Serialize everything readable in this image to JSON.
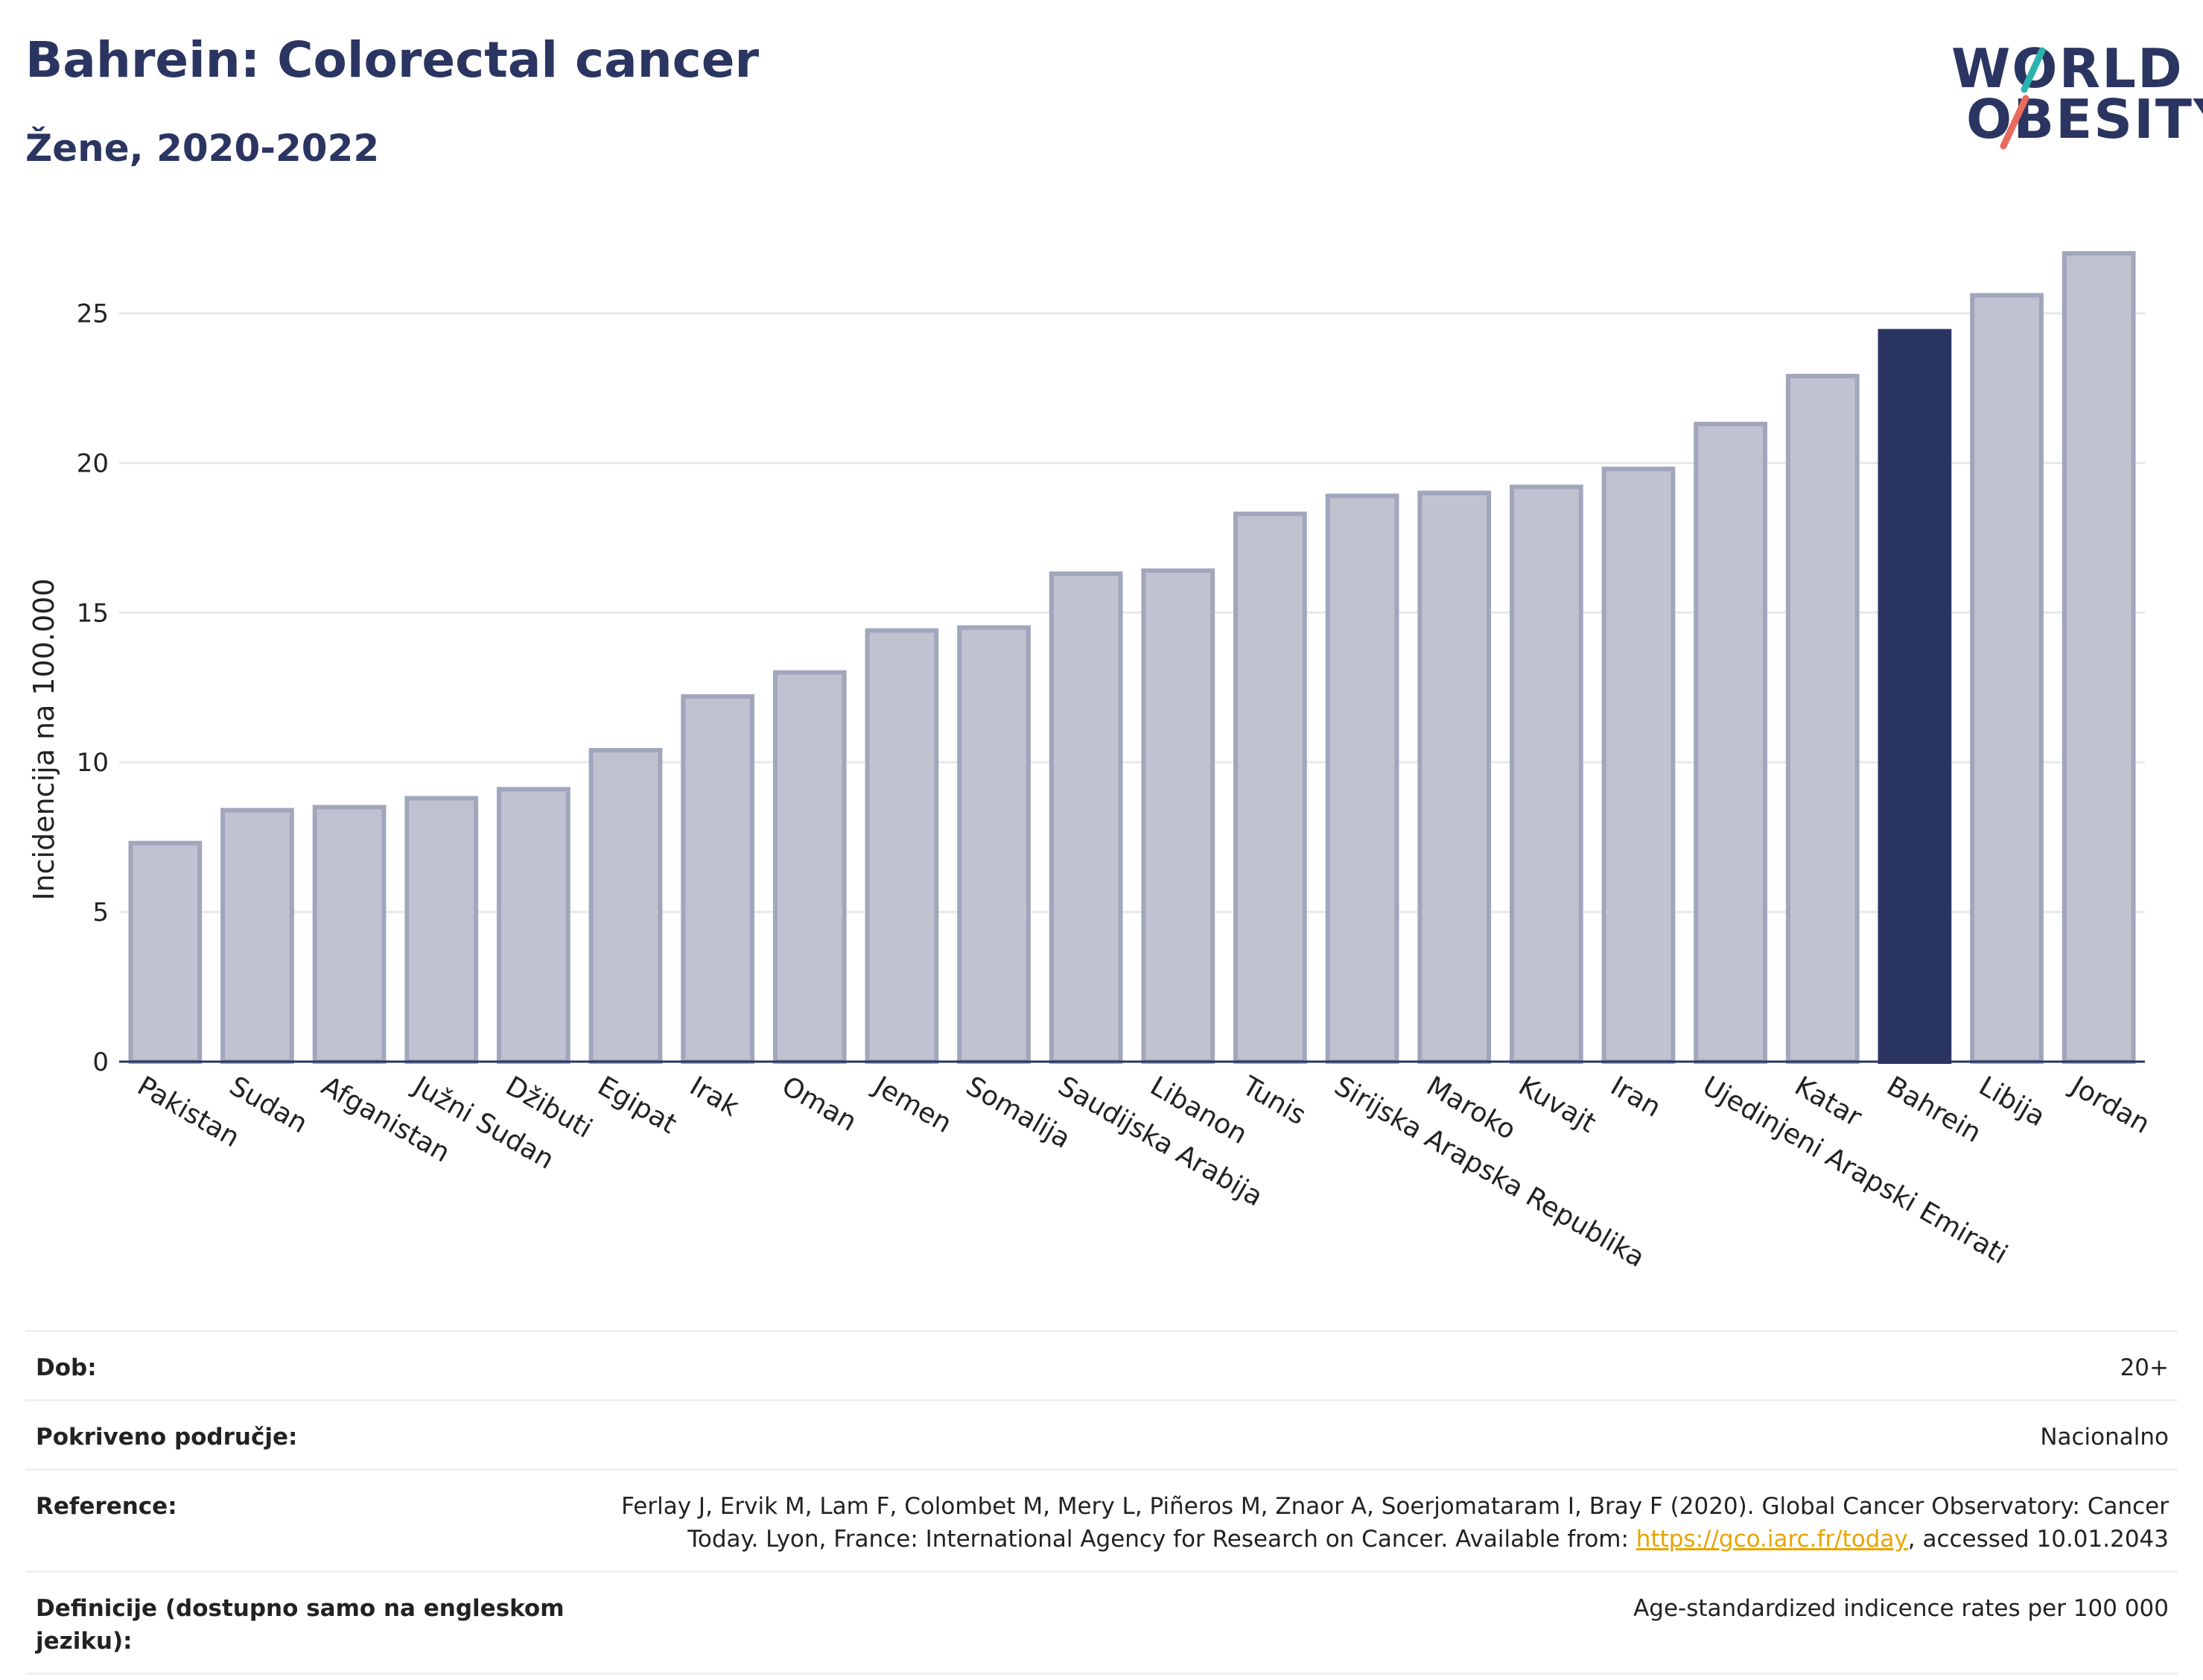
{
  "header": {
    "title": "Bahrein: Colorectal cancer",
    "subtitle": "Žene, 2020-2022"
  },
  "logo": {
    "line1": "WORLD",
    "line2": "OBESITY",
    "colors": {
      "text": "#2b3561",
      "slash_teal": "#2bb3b0",
      "slash_coral": "#e96b5e"
    }
  },
  "colors": {
    "bar": "#bfc2cf",
    "bar_border": "#a1a6bc",
    "highlight": "#2b3561",
    "grid": "#e6e8ee",
    "axis": "#2b3561"
  },
  "chart_data": {
    "type": "bar",
    "title": "",
    "xlabel": "",
    "ylabel": "Incidencija na 100.000",
    "ylim": [
      0,
      27.5
    ],
    "yticks": [
      0,
      5,
      10,
      15,
      20,
      25
    ],
    "grid": true,
    "highlight_category": "Bahrein",
    "categories": [
      "Pakistan",
      "Sudan",
      "Afganistan",
      "Južni Sudan",
      "Džibuti",
      "Egipat",
      "Irak",
      "Oman",
      "Jemen",
      "Somalija",
      "Saudijska Arabija",
      "Libanon",
      "Tunis",
      "Sirijska Arapska Republika",
      "Maroko",
      "Kuvajt",
      "Iran",
      "Ujedinjeni Arapski Emirati",
      "Katar",
      "Bahrein",
      "Libija",
      "Jordan"
    ],
    "values": [
      7.3,
      8.4,
      8.5,
      8.8,
      9.1,
      10.4,
      12.2,
      13.0,
      14.4,
      14.5,
      16.3,
      16.4,
      18.3,
      18.9,
      19.0,
      19.2,
      19.8,
      21.3,
      22.9,
      24.4,
      25.6,
      27.0
    ]
  },
  "meta": {
    "age_label": "Dob:",
    "age_value": "20+",
    "coverage_label": "Pokriveno područje:",
    "coverage_value": "Nacionalno",
    "reference_label": "Reference:",
    "reference_text_1": "Ferlay J, Ervik M, Lam F, Colombet M, Mery L, Piñeros M, Znaor A, Soerjomataram I, Bray F (2020). Global Cancer Observatory: Cancer Today. Lyon, France: International Agency for Research on Cancer. Available from: ",
    "reference_link": "https://gco.iarc.fr/today",
    "reference_text_2": ", accessed 10.01.2043",
    "definition_label": "Definicije (dostupno samo na engleskom jeziku):",
    "definition_value": "Age-standardized indicence rates per 100 000"
  }
}
